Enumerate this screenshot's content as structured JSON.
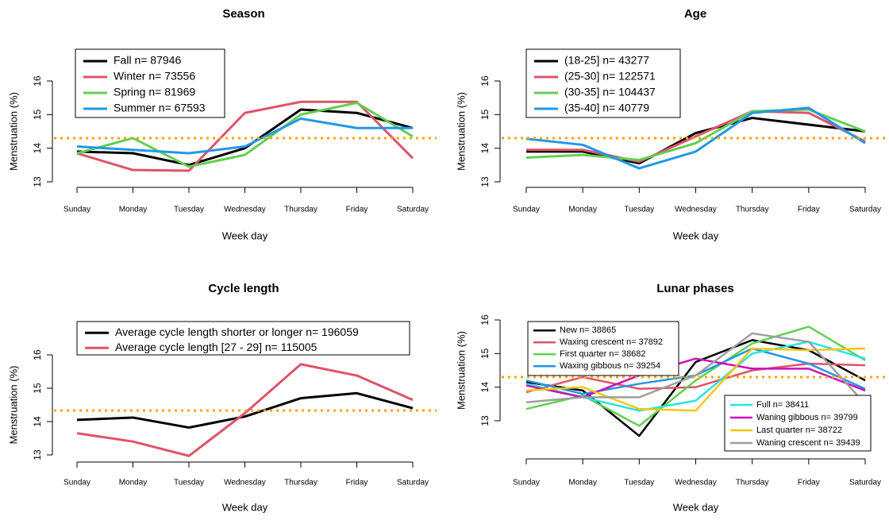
{
  "chart_data": [
    {
      "type": "line",
      "title": "Season",
      "x_label": "Week day",
      "y_label": "Menstruation (%)",
      "categories": [
        "Sunday",
        "Monday",
        "Tuesday",
        "Wednesday",
        "Thursday",
        "Friday",
        "Saturday"
      ],
      "ylim": [
        13,
        16
      ],
      "yticks": [
        13,
        14,
        15,
        16
      ],
      "reference_line": 14.3,
      "reference_color": "#FFA500",
      "series": [
        {
          "name": "Fall n= 87946",
          "color": "#000000",
          "legend": "topleft",
          "values": [
            13.9,
            13.85,
            13.5,
            14.0,
            15.15,
            15.05,
            14.6
          ]
        },
        {
          "name": "Winter n= 73556",
          "color": "#DF536B",
          "legend": "topleft",
          "values": [
            13.85,
            13.35,
            13.33,
            15.05,
            15.38,
            15.38,
            13.7
          ]
        },
        {
          "name": "Spring n= 81969",
          "color": "#61D04F",
          "legend": "topleft",
          "values": [
            13.85,
            14.3,
            13.45,
            13.8,
            15.0,
            15.35,
            14.35
          ]
        },
        {
          "name": "Summer n= 67593",
          "color": "#2297E6",
          "legend": "topleft",
          "values": [
            14.05,
            13.95,
            13.85,
            14.05,
            14.88,
            14.6,
            14.6
          ]
        }
      ]
    },
    {
      "type": "line",
      "title": "Age",
      "x_label": "Week day",
      "y_label": "Menstruation (%)",
      "categories": [
        "Sunday",
        "Monday",
        "Tuesday",
        "Wednesday",
        "Thursday",
        "Friday",
        "Saturday"
      ],
      "ylim": [
        13,
        16
      ],
      "yticks": [
        13,
        14,
        15,
        16
      ],
      "reference_line": 14.3,
      "reference_color": "#FFA500",
      "series": [
        {
          "name": "(18-25] n= 43277",
          "color": "#000000",
          "legend": "topleft",
          "values": [
            13.9,
            13.9,
            13.55,
            14.45,
            14.9,
            14.7,
            14.5
          ]
        },
        {
          "name": "(25-30] n= 122571",
          "color": "#DF536B",
          "legend": "topleft",
          "values": [
            13.95,
            13.95,
            13.6,
            14.35,
            15.1,
            15.05,
            14.2
          ]
        },
        {
          "name": "(30-35] n= 104437",
          "color": "#61D04F",
          "legend": "topleft",
          "values": [
            13.72,
            13.8,
            13.65,
            14.15,
            15.1,
            15.15,
            14.5
          ]
        },
        {
          "name": "(35-40] n= 40779",
          "color": "#2297E6",
          "legend": "topleft",
          "values": [
            14.28,
            14.1,
            13.4,
            13.9,
            15.05,
            15.2,
            14.15
          ]
        }
      ]
    },
    {
      "type": "line",
      "title": "Cycle length",
      "x_label": "Week day",
      "y_label": "Menstruation (%)",
      "categories": [
        "Sunday",
        "Monday",
        "Tuesday",
        "Wednesday",
        "Thursday",
        "Friday",
        "Saturday"
      ],
      "ylim": [
        13,
        16
      ],
      "yticks": [
        13,
        14,
        15,
        16
      ],
      "reference_line": 14.33,
      "reference_color": "#FFA500",
      "series": [
        {
          "name": "Average cycle length shorter or longer n= 196059",
          "color": "#000000",
          "legend": "top",
          "values": [
            14.05,
            14.12,
            13.82,
            14.15,
            14.7,
            14.85,
            14.4
          ]
        },
        {
          "name": "Average cycle length [27 - 29] n= 115005",
          "color": "#DF536B",
          "legend": "top",
          "values": [
            13.65,
            13.4,
            12.97,
            14.25,
            15.72,
            15.38,
            14.65
          ]
        }
      ]
    },
    {
      "type": "line",
      "title": "Lunar phases",
      "x_label": "Week day",
      "y_label": "Menstruation (%)",
      "categories": [
        "Sunday",
        "Monday",
        "Tuesday",
        "Wednesday",
        "Thursday",
        "Friday",
        "Saturday"
      ],
      "ylim": [
        13,
        16
      ],
      "yticks": [
        13,
        14,
        15,
        16
      ],
      "reference_line": 14.3,
      "reference_color": "#FFA500",
      "series": [
        {
          "name": "New n= 38865",
          "color": "#000000",
          "legend": "topleft",
          "values": [
            14.15,
            13.9,
            12.55,
            14.75,
            15.4,
            15.1,
            14.2
          ]
        },
        {
          "name": "Waxing crescent n= 37892",
          "color": "#DF536B",
          "legend": "topleft",
          "values": [
            13.85,
            14.3,
            13.95,
            14.0,
            14.5,
            14.7,
            14.65
          ]
        },
        {
          "name": "First quarter n= 38682",
          "color": "#61D04F",
          "legend": "topleft",
          "values": [
            13.35,
            13.75,
            12.85,
            14.2,
            15.3,
            15.8,
            14.8
          ]
        },
        {
          "name": "Waxing gibbous n= 39254",
          "color": "#2297E6",
          "legend": "topleft",
          "values": [
            14.2,
            13.8,
            14.1,
            14.35,
            15.15,
            14.7,
            13.95
          ]
        },
        {
          "name": "Full n= 38411",
          "color": "#28E2E5",
          "legend": "bottomright",
          "values": [
            14.1,
            13.7,
            13.3,
            13.6,
            15.0,
            15.35,
            14.85
          ]
        },
        {
          "name": "Waning gibbous n= 39799",
          "color": "#CD0BBC",
          "legend": "bottomright",
          "values": [
            14.05,
            13.7,
            14.35,
            14.85,
            14.55,
            14.55,
            13.9
          ]
        },
        {
          "name": "Last quarter n= 38722",
          "color": "#F5C710",
          "legend": "bottomright",
          "values": [
            13.9,
            14.0,
            13.35,
            13.3,
            15.15,
            15.1,
            15.15
          ]
        },
        {
          "name": "Waning crescent n= 39439",
          "color": "#9E9E9E",
          "legend": "bottomright",
          "values": [
            13.55,
            13.7,
            13.7,
            14.35,
            15.6,
            15.35,
            13.5
          ]
        }
      ]
    }
  ]
}
